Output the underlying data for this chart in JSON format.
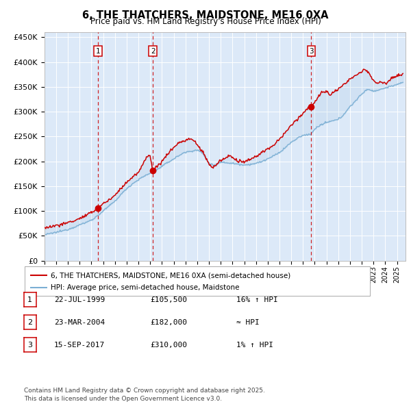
{
  "title": "6, THE THATCHERS, MAIDSTONE, ME16 0XA",
  "subtitle": "Price paid vs. HM Land Registry's House Price Index (HPI)",
  "ylim": [
    0,
    460000
  ],
  "yticks": [
    0,
    50000,
    100000,
    150000,
    200000,
    250000,
    300000,
    350000,
    400000,
    450000
  ],
  "ytick_labels": [
    "£0",
    "£50K",
    "£100K",
    "£150K",
    "£200K",
    "£250K",
    "£300K",
    "£350K",
    "£400K",
    "£450K"
  ],
  "xlim_start": 1995.0,
  "xlim_end": 2025.7,
  "background_color": "#ffffff",
  "plot_bg_color": "#dce9f8",
  "grid_color": "#ffffff",
  "sale_dates": [
    1999.554,
    2004.228,
    2017.706
  ],
  "sale_prices": [
    105500,
    182000,
    310000
  ],
  "sale_labels": [
    "1",
    "2",
    "3"
  ],
  "legend_line1": "6, THE THATCHERS, MAIDSTONE, ME16 0XA (semi-detached house)",
  "legend_line2": "HPI: Average price, semi-detached house, Maidstone",
  "table_entries": [
    {
      "label": "1",
      "date": "22-JUL-1999",
      "price": "£105,500",
      "note": "16% ↑ HPI"
    },
    {
      "label": "2",
      "date": "23-MAR-2004",
      "price": "£182,000",
      "note": "≈ HPI"
    },
    {
      "label": "3",
      "date": "15-SEP-2017",
      "price": "£310,000",
      "note": "1% ↑ HPI"
    }
  ],
  "footnote": "Contains HM Land Registry data © Crown copyright and database right 2025.\nThis data is licensed under the Open Government Licence v3.0.",
  "red_color": "#cc0000",
  "blue_color": "#7bafd4",
  "dot_color": "#cc0000"
}
